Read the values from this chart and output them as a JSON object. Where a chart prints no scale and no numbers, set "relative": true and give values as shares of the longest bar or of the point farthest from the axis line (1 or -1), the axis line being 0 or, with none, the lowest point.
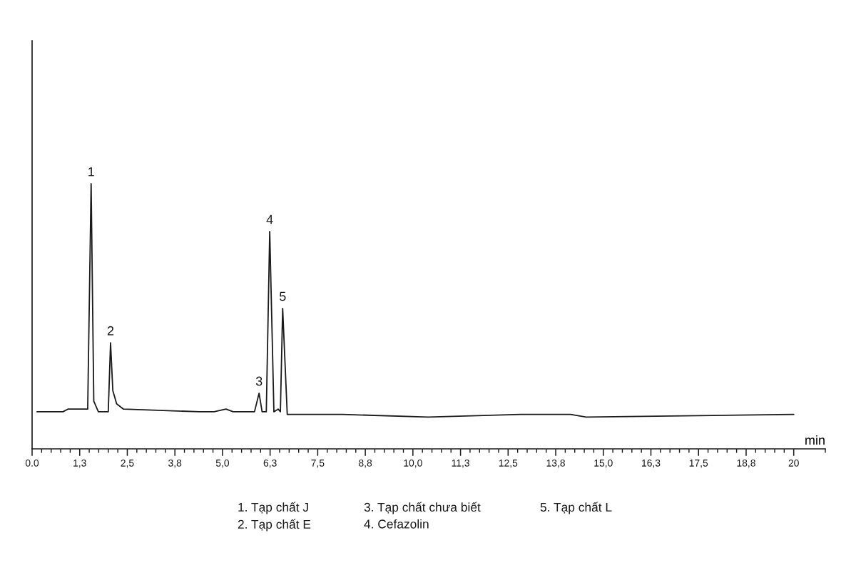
{
  "chart_data": {
    "type": "line",
    "relative": true,
    "xlabel": "min",
    "x": [
      0.13,
      0.81,
      0.94,
      1.22,
      1.46,
      1.55,
      1.62,
      1.74,
      2.0,
      2.06,
      2.12,
      2.22,
      2.4,
      4.4,
      4.78,
      5.09,
      5.28,
      5.84,
      5.96,
      6.04,
      6.15,
      6.24,
      6.35,
      6.46,
      6.52,
      6.58,
      6.7,
      8.15,
      10.4,
      12.83,
      12.92,
      13.02,
      14.14,
      14.55,
      20.0
    ],
    "series": [
      {
        "color": "#1a1a1a",
        "values": [
          0.14,
          0.14,
          0.15,
          0.15,
          0.15,
          1.0,
          0.18,
          0.14,
          0.14,
          0.4,
          0.22,
          0.17,
          0.15,
          0.14,
          0.14,
          0.15,
          0.14,
          0.14,
          0.21,
          0.14,
          0.14,
          0.82,
          0.14,
          0.15,
          0.14,
          0.53,
          0.13,
          0.13,
          0.12,
          0.13,
          0.13,
          0.13,
          0.13,
          0.12,
          0.13
        ]
      }
    ],
    "xlim": [
      0,
      20.83
    ],
    "xticks": [
      {
        "value": 0,
        "label": "0.0"
      },
      {
        "value": 0.25,
        "label": null
      },
      {
        "value": 0.5,
        "label": null
      },
      {
        "value": 0.75,
        "label": null
      },
      {
        "value": 1.0,
        "label": null
      },
      {
        "value": 1.25,
        "label": "1,3"
      },
      {
        "value": 1.5,
        "label": null
      },
      {
        "value": 1.75,
        "label": null
      },
      {
        "value": 2.0,
        "label": null
      },
      {
        "value": 2.25,
        "label": null
      },
      {
        "value": 2.5,
        "label": "2,5"
      },
      {
        "value": 2.75,
        "label": null
      },
      {
        "value": 3.0,
        "label": null
      },
      {
        "value": 3.25,
        "label": null
      },
      {
        "value": 3.5,
        "label": null
      },
      {
        "value": 3.75,
        "label": "3,8"
      },
      {
        "value": 4.0,
        "label": null
      },
      {
        "value": 4.25,
        "label": null
      },
      {
        "value": 4.5,
        "label": null
      },
      {
        "value": 4.75,
        "label": null
      },
      {
        "value": 5.0,
        "label": "5,0"
      },
      {
        "value": 5.25,
        "label": null
      },
      {
        "value": 5.5,
        "label": null
      },
      {
        "value": 5.75,
        "label": null
      },
      {
        "value": 6.0,
        "label": null
      },
      {
        "value": 6.25,
        "label": "6,3"
      },
      {
        "value": 6.5,
        "label": null
      },
      {
        "value": 6.75,
        "label": null
      },
      {
        "value": 7.0,
        "label": null
      },
      {
        "value": 7.25,
        "label": null
      },
      {
        "value": 7.5,
        "label": "7,5"
      },
      {
        "value": 7.75,
        "label": null
      },
      {
        "value": 8.0,
        "label": null
      },
      {
        "value": 8.25,
        "label": null
      },
      {
        "value": 8.5,
        "label": null
      },
      {
        "value": 8.75,
        "label": "8,8"
      },
      {
        "value": 9.0,
        "label": null
      },
      {
        "value": 9.25,
        "label": null
      },
      {
        "value": 9.5,
        "label": null
      },
      {
        "value": 9.75,
        "label": null
      },
      {
        "value": 10.0,
        "label": "10,0"
      },
      {
        "value": 10.25,
        "label": null
      },
      {
        "value": 10.5,
        "label": null
      },
      {
        "value": 10.75,
        "label": null
      },
      {
        "value": 11.0,
        "label": null
      },
      {
        "value": 11.25,
        "label": "11,3"
      },
      {
        "value": 11.5,
        "label": null
      },
      {
        "value": 11.75,
        "label": null
      },
      {
        "value": 12.0,
        "label": null
      },
      {
        "value": 12.25,
        "label": null
      },
      {
        "value": 12.5,
        "label": "12,5"
      },
      {
        "value": 12.75,
        "label": null
      },
      {
        "value": 13.0,
        "label": null
      },
      {
        "value": 13.25,
        "label": null
      },
      {
        "value": 13.5,
        "label": null
      },
      {
        "value": 13.75,
        "label": "13,8"
      },
      {
        "value": 14.0,
        "label": null
      },
      {
        "value": 14.25,
        "label": null
      },
      {
        "value": 14.5,
        "label": null
      },
      {
        "value": 14.75,
        "label": null
      },
      {
        "value": 15.0,
        "label": "15,0"
      },
      {
        "value": 15.25,
        "label": null
      },
      {
        "value": 15.5,
        "label": null
      },
      {
        "value": 15.75,
        "label": null
      },
      {
        "value": 16.0,
        "label": null
      },
      {
        "value": 16.25,
        "label": "16,3"
      },
      {
        "value": 16.5,
        "label": null
      },
      {
        "value": 16.75,
        "label": null
      },
      {
        "value": 17.0,
        "label": null
      },
      {
        "value": 17.25,
        "label": null
      },
      {
        "value": 17.5,
        "label": "17,5"
      },
      {
        "value": 17.75,
        "label": null
      },
      {
        "value": 18.0,
        "label": null
      },
      {
        "value": 18.25,
        "label": null
      },
      {
        "value": 18.5,
        "label": null
      },
      {
        "value": 18.75,
        "label": "18,8"
      },
      {
        "value": 19.0,
        "label": null
      },
      {
        "value": 19.25,
        "label": null
      },
      {
        "value": 19.5,
        "label": null
      },
      {
        "value": 19.75,
        "label": null
      },
      {
        "value": 20.0,
        "label": "20"
      },
      {
        "value": 20.83,
        "label": null
      }
    ],
    "tick_labels": "x",
    "grid": false,
    "annotations": [
      {
        "text": "1",
        "x": 1.55,
        "y": 1.0
      },
      {
        "text": "2",
        "x": 2.06,
        "y": 0.4
      },
      {
        "text": "3",
        "x": 5.96,
        "y": 0.21
      },
      {
        "text": "4",
        "x": 6.24,
        "y": 0.82
      },
      {
        "text": "5",
        "x": 6.58,
        "y": 0.53
      },
      "1. Tạp chất J",
      "2. Tạp chất E",
      "3. Tạp chất chưa biết",
      "4. Cefazolin",
      "5. Tạp chất L"
    ]
  }
}
